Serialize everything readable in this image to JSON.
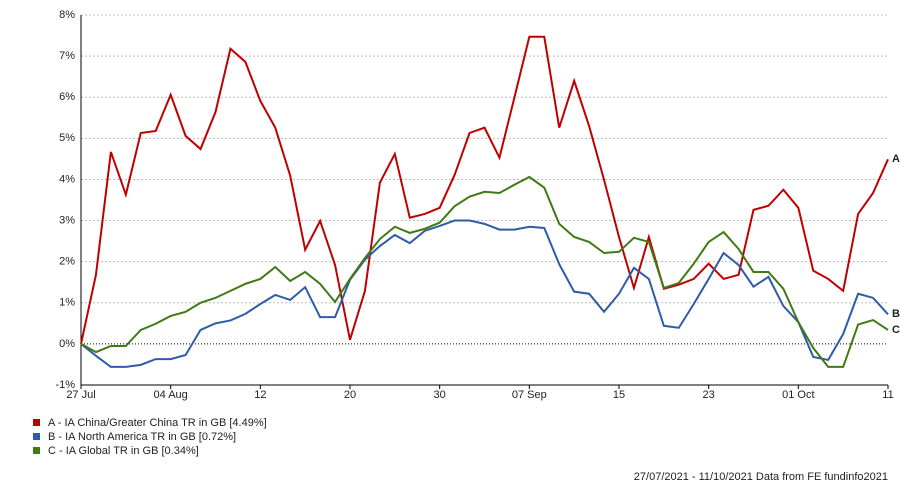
{
  "chart_data": {
    "type": "line",
    "categories": [
      "27 Jul",
      null,
      null,
      null,
      null,
      null,
      "04 Aug",
      null,
      null,
      null,
      null,
      null,
      "12",
      null,
      null,
      null,
      null,
      null,
      "20",
      null,
      null,
      null,
      null,
      null,
      "30",
      null,
      null,
      null,
      null,
      null,
      "07 Sep",
      null,
      null,
      null,
      null,
      null,
      "15",
      null,
      null,
      null,
      null,
      null,
      "23",
      null,
      null,
      null,
      null,
      null,
      "01 Oct",
      null,
      null,
      null,
      null,
      null,
      "11"
    ],
    "series": [
      {
        "name": "A - IA China/Greater China TR in GB [4.49%]",
        "label": "A",
        "color": "#c00000",
        "values": [
          0,
          1.68,
          4.67,
          3.63,
          5.13,
          5.18,
          6.06,
          5.06,
          4.74,
          5.64,
          7.18,
          6.86,
          5.91,
          5.26,
          4.09,
          2.29,
          2.99,
          1.92,
          0.1,
          1.29,
          3.92,
          4.62,
          3.07,
          3.16,
          3.31,
          4.11,
          5.13,
          5.26,
          4.53,
          5.99,
          7.47,
          7.47,
          5.26,
          6.4,
          5.3,
          3.99,
          2.6,
          1.36,
          2.6,
          1.34,
          1.44,
          1.58,
          1.95,
          1.58,
          1.68,
          3.26,
          3.36,
          3.75,
          3.31,
          1.78,
          1.58,
          1.29,
          3.16,
          3.67,
          4.49
        ]
      },
      {
        "name": "B - IA North America TR in GB [0.72%]",
        "label": "B",
        "color": "#2e5ca8",
        "values": [
          0,
          -0.29,
          -0.56,
          -0.56,
          -0.51,
          -0.37,
          -0.37,
          -0.27,
          0.34,
          0.5,
          0.57,
          0.73,
          0.97,
          1.19,
          1.07,
          1.38,
          0.65,
          0.65,
          1.56,
          2.05,
          2.38,
          2.65,
          2.45,
          2.75,
          2.87,
          3.0,
          3.0,
          2.92,
          2.78,
          2.78,
          2.85,
          2.82,
          1.94,
          1.27,
          1.22,
          0.78,
          1.22,
          1.85,
          1.58,
          0.44,
          0.39,
          0.97,
          1.58,
          2.21,
          1.92,
          1.39,
          1.63,
          0.92,
          0.53,
          -0.32,
          -0.39,
          0.24,
          1.22,
          1.12,
          0.72
        ]
      },
      {
        "name": "C - IA Global TR in GB [0.34%]",
        "label": "C",
        "color": "#3f7a12",
        "values": [
          0,
          -0.2,
          -0.05,
          -0.05,
          0.34,
          0.49,
          0.68,
          0.78,
          1.0,
          1.12,
          1.29,
          1.46,
          1.58,
          1.87,
          1.53,
          1.75,
          1.46,
          1.02,
          1.58,
          2.09,
          2.55,
          2.85,
          2.7,
          2.8,
          2.95,
          3.35,
          3.58,
          3.7,
          3.67,
          3.87,
          4.06,
          3.8,
          2.92,
          2.6,
          2.48,
          2.21,
          2.24,
          2.58,
          2.48,
          1.36,
          1.48,
          1.95,
          2.48,
          2.72,
          2.31,
          1.75,
          1.75,
          1.34,
          0.53,
          -0.1,
          -0.56,
          -0.56,
          0.47,
          0.58,
          0.34
        ]
      }
    ],
    "ylim": [
      -1,
      8
    ],
    "yticks": [
      {
        "value": -1,
        "label": "-1%"
      },
      {
        "value": 0,
        "label": "0%"
      },
      {
        "value": 1,
        "label": "1%"
      },
      {
        "value": 2,
        "label": "2%"
      },
      {
        "value": 3,
        "label": "3%"
      },
      {
        "value": 4,
        "label": "4%"
      },
      {
        "value": 5,
        "label": "5%"
      },
      {
        "value": 6,
        "label": "6%"
      },
      {
        "value": 7,
        "label": "7%"
      },
      {
        "value": 8,
        "label": "8%"
      }
    ],
    "grid": true,
    "footer": "27/07/2021 - 11/10/2021 Data from FE fundinfo2021"
  }
}
